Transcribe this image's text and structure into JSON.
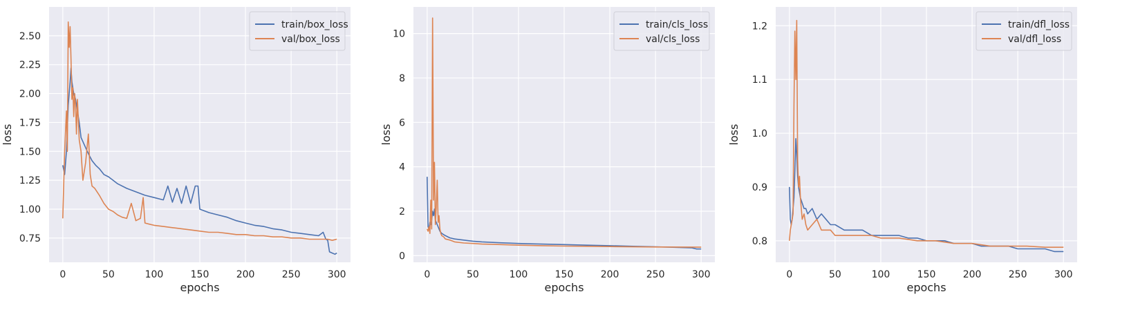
{
  "chart_data": [
    {
      "type": "line",
      "xlabel": "epochs",
      "ylabel": "loss",
      "xlim": [
        -15,
        315
      ],
      "ylim": [
        0.54,
        2.75
      ],
      "xticks": [
        "0",
        "50",
        "100",
        "150",
        "200",
        "250",
        "300"
      ],
      "yticks": [
        "0.75",
        "1.00",
        "1.25",
        "1.50",
        "1.75",
        "2.00",
        "2.25",
        "2.50"
      ],
      "grid": true,
      "legend": "top-right",
      "series": [
        {
          "name": "train/box_loss",
          "color": "#4c72b0",
          "x": [
            0,
            2,
            4,
            6,
            8,
            9,
            10,
            12,
            14,
            16,
            18,
            20,
            24,
            28,
            32,
            36,
            40,
            45,
            50,
            55,
            60,
            70,
            80,
            90,
            100,
            110,
            115,
            120,
            125,
            130,
            135,
            140,
            145,
            148,
            150,
            160,
            170,
            180,
            190,
            200,
            210,
            220,
            230,
            240,
            250,
            260,
            270,
            280,
            285,
            288,
            290,
            292,
            295,
            298,
            300
          ],
          "y": [
            1.38,
            1.3,
            1.5,
            1.9,
            2.1,
            2.22,
            2.1,
            2.0,
            1.95,
            1.85,
            1.75,
            1.62,
            1.55,
            1.48,
            1.42,
            1.38,
            1.35,
            1.3,
            1.28,
            1.25,
            1.22,
            1.18,
            1.15,
            1.12,
            1.1,
            1.08,
            1.2,
            1.06,
            1.18,
            1.05,
            1.2,
            1.05,
            1.2,
            1.2,
            1.0,
            0.97,
            0.95,
            0.93,
            0.9,
            0.88,
            0.86,
            0.85,
            0.83,
            0.82,
            0.8,
            0.79,
            0.78,
            0.77,
            0.8,
            0.74,
            0.73,
            0.63,
            0.62,
            0.61,
            0.62
          ]
        },
        {
          "name": "val/box_loss",
          "color": "#dd8452",
          "x": [
            0,
            2,
            4,
            5,
            6,
            7,
            8,
            9,
            10,
            11,
            12,
            13,
            14,
            15,
            16,
            18,
            20,
            22,
            25,
            28,
            30,
            32,
            35,
            40,
            45,
            50,
            55,
            60,
            65,
            70,
            75,
            80,
            85,
            88,
            90,
            95,
            100,
            110,
            120,
            130,
            140,
            150,
            160,
            170,
            180,
            190,
            200,
            210,
            220,
            230,
            240,
            250,
            260,
            270,
            280,
            290,
            295,
            300
          ],
          "y": [
            0.92,
            1.5,
            1.85,
            1.5,
            2.62,
            2.4,
            2.58,
            2.3,
            1.95,
            2.05,
            1.8,
            2.0,
            1.9,
            1.65,
            1.95,
            1.6,
            1.5,
            1.25,
            1.4,
            1.65,
            1.3,
            1.2,
            1.18,
            1.12,
            1.05,
            1.0,
            0.98,
            0.95,
            0.93,
            0.92,
            1.05,
            0.9,
            0.92,
            1.1,
            0.88,
            0.87,
            0.86,
            0.85,
            0.84,
            0.83,
            0.82,
            0.81,
            0.8,
            0.8,
            0.79,
            0.78,
            0.78,
            0.77,
            0.77,
            0.76,
            0.76,
            0.75,
            0.75,
            0.74,
            0.74,
            0.74,
            0.73,
            0.74
          ]
        }
      ]
    },
    {
      "type": "line",
      "xlabel": "epochs",
      "ylabel": "loss",
      "xlim": [
        -15,
        315
      ],
      "ylim": [
        -0.3,
        11.2
      ],
      "xticks": [
        "0",
        "50",
        "100",
        "150",
        "200",
        "250",
        "300"
      ],
      "yticks": [
        "0",
        "2",
        "4",
        "6",
        "8",
        "10"
      ],
      "grid": true,
      "legend": "top-right",
      "series": [
        {
          "name": "train/cls_loss",
          "color": "#4c72b0",
          "x": [
            0,
            1,
            2,
            3,
            4,
            5,
            6,
            7,
            8,
            9,
            10,
            12,
            14,
            16,
            18,
            20,
            25,
            30,
            40,
            50,
            60,
            80,
            100,
            125,
            150,
            175,
            200,
            225,
            250,
            275,
            290,
            295,
            300
          ],
          "y": [
            3.55,
            1.3,
            1.2,
            1.5,
            1.4,
            1.6,
            2.0,
            1.8,
            2.1,
            1.6,
            1.5,
            1.3,
            1.1,
            1.0,
            0.95,
            0.9,
            0.8,
            0.75,
            0.7,
            0.65,
            0.62,
            0.58,
            0.55,
            0.52,
            0.5,
            0.47,
            0.45,
            0.42,
            0.4,
            0.37,
            0.35,
            0.3,
            0.3
          ]
        },
        {
          "name": "val/cls_loss",
          "color": "#dd8452",
          "x": [
            0,
            1,
            2,
            3,
            4,
            5,
            6,
            7,
            8,
            9,
            10,
            11,
            12,
            13,
            14,
            15,
            16,
            18,
            20,
            25,
            30,
            40,
            50,
            60,
            80,
            100,
            125,
            150,
            175,
            200,
            250,
            300
          ],
          "y": [
            1.2,
            1.1,
            1.3,
            1.0,
            2.5,
            1.2,
            10.7,
            2.5,
            4.2,
            1.4,
            2.2,
            3.4,
            1.5,
            1.8,
            1.2,
            1.0,
            0.9,
            0.85,
            0.75,
            0.7,
            0.62,
            0.57,
            0.55,
            0.52,
            0.5,
            0.47,
            0.45,
            0.43,
            0.42,
            0.41,
            0.39,
            0.38
          ]
        }
      ]
    },
    {
      "type": "line",
      "xlabel": "epochs",
      "ylabel": "loss",
      "xlim": [
        -15,
        315
      ],
      "ylim": [
        0.76,
        1.235
      ],
      "xticks": [
        "0",
        "50",
        "100",
        "150",
        "200",
        "250",
        "300"
      ],
      "yticks": [
        "0.8",
        "0.9",
        "1.0",
        "1.1",
        "1.2"
      ],
      "grid": true,
      "legend": "top-right",
      "series": [
        {
          "name": "train/dfl_loss",
          "color": "#4c72b0",
          "x": [
            0,
            1,
            2,
            3,
            4,
            5,
            6,
            7,
            8,
            9,
            10,
            12,
            14,
            16,
            18,
            20,
            25,
            30,
            35,
            40,
            45,
            50,
            60,
            70,
            80,
            90,
            100,
            110,
            120,
            130,
            140,
            150,
            160,
            170,
            180,
            190,
            200,
            210,
            220,
            230,
            240,
            250,
            260,
            270,
            280,
            290,
            295,
            300
          ],
          "y": [
            0.9,
            0.84,
            0.83,
            0.84,
            0.86,
            0.88,
            0.93,
            0.99,
            0.96,
            0.92,
            0.9,
            0.88,
            0.87,
            0.86,
            0.86,
            0.85,
            0.86,
            0.84,
            0.85,
            0.84,
            0.83,
            0.83,
            0.82,
            0.82,
            0.82,
            0.81,
            0.81,
            0.81,
            0.81,
            0.805,
            0.805,
            0.8,
            0.8,
            0.8,
            0.795,
            0.795,
            0.795,
            0.79,
            0.79,
            0.79,
            0.79,
            0.785,
            0.785,
            0.785,
            0.785,
            0.78,
            0.78,
            0.78
          ]
        },
        {
          "name": "val/dfl_loss",
          "color": "#dd8452",
          "x": [
            0,
            1,
            2,
            3,
            4,
            5,
            6,
            7,
            8,
            9,
            10,
            11,
            12,
            13,
            14,
            16,
            18,
            20,
            25,
            30,
            35,
            40,
            45,
            50,
            60,
            70,
            80,
            90,
            100,
            120,
            140,
            160,
            180,
            200,
            220,
            240,
            260,
            280,
            300
          ],
          "y": [
            0.8,
            0.82,
            0.83,
            0.84,
            0.85,
            1.05,
            1.19,
            1.1,
            1.21,
            0.95,
            0.9,
            0.92,
            0.88,
            0.86,
            0.84,
            0.85,
            0.83,
            0.82,
            0.83,
            0.84,
            0.82,
            0.82,
            0.82,
            0.81,
            0.81,
            0.81,
            0.81,
            0.81,
            0.805,
            0.805,
            0.8,
            0.8,
            0.795,
            0.795,
            0.79,
            0.79,
            0.79,
            0.788,
            0.788
          ]
        }
      ]
    }
  ]
}
